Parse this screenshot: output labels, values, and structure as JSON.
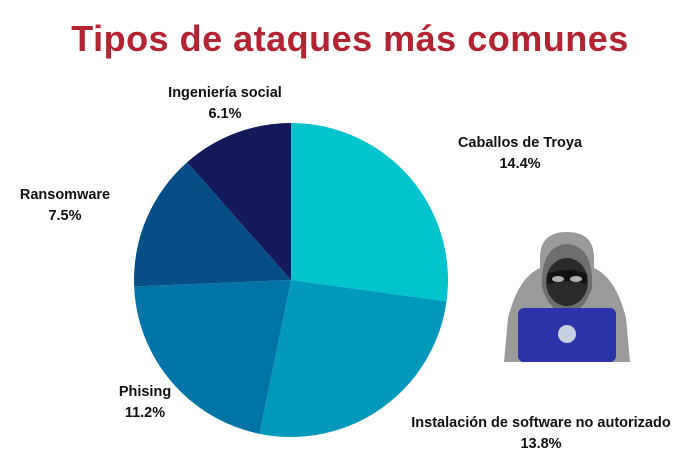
{
  "title": "Tipos de ataques más comunes",
  "title_color": "#b32433",
  "chart_data": {
    "type": "pie",
    "title": "Tipos de ataques más comunes",
    "slices": [
      {
        "label": "Caballos de Troya",
        "display": "14.4%",
        "value": 14.4,
        "color": "#00c4cc"
      },
      {
        "label": "Instalación de software no autorizado",
        "display": "13.8%",
        "value": 13.8,
        "color": "#0099bb"
      },
      {
        "label": "Phising",
        "display": "11.2%",
        "value": 11.2,
        "color": "#0074a6"
      },
      {
        "label": "Ransomware",
        "display": "7.5%",
        "value": 7.5,
        "color": "#054f86"
      },
      {
        "label": "Ingeniería social",
        "display": "6.1%",
        "value": 6.1,
        "color": "#13195a"
      }
    ],
    "start_angle": "12 o'clock",
    "direction": "clockwise"
  },
  "illustration": {
    "icon": "hacker-with-laptop-icon",
    "hood_color": "#9a9a9a",
    "laptop_color": "#2b35a8"
  }
}
